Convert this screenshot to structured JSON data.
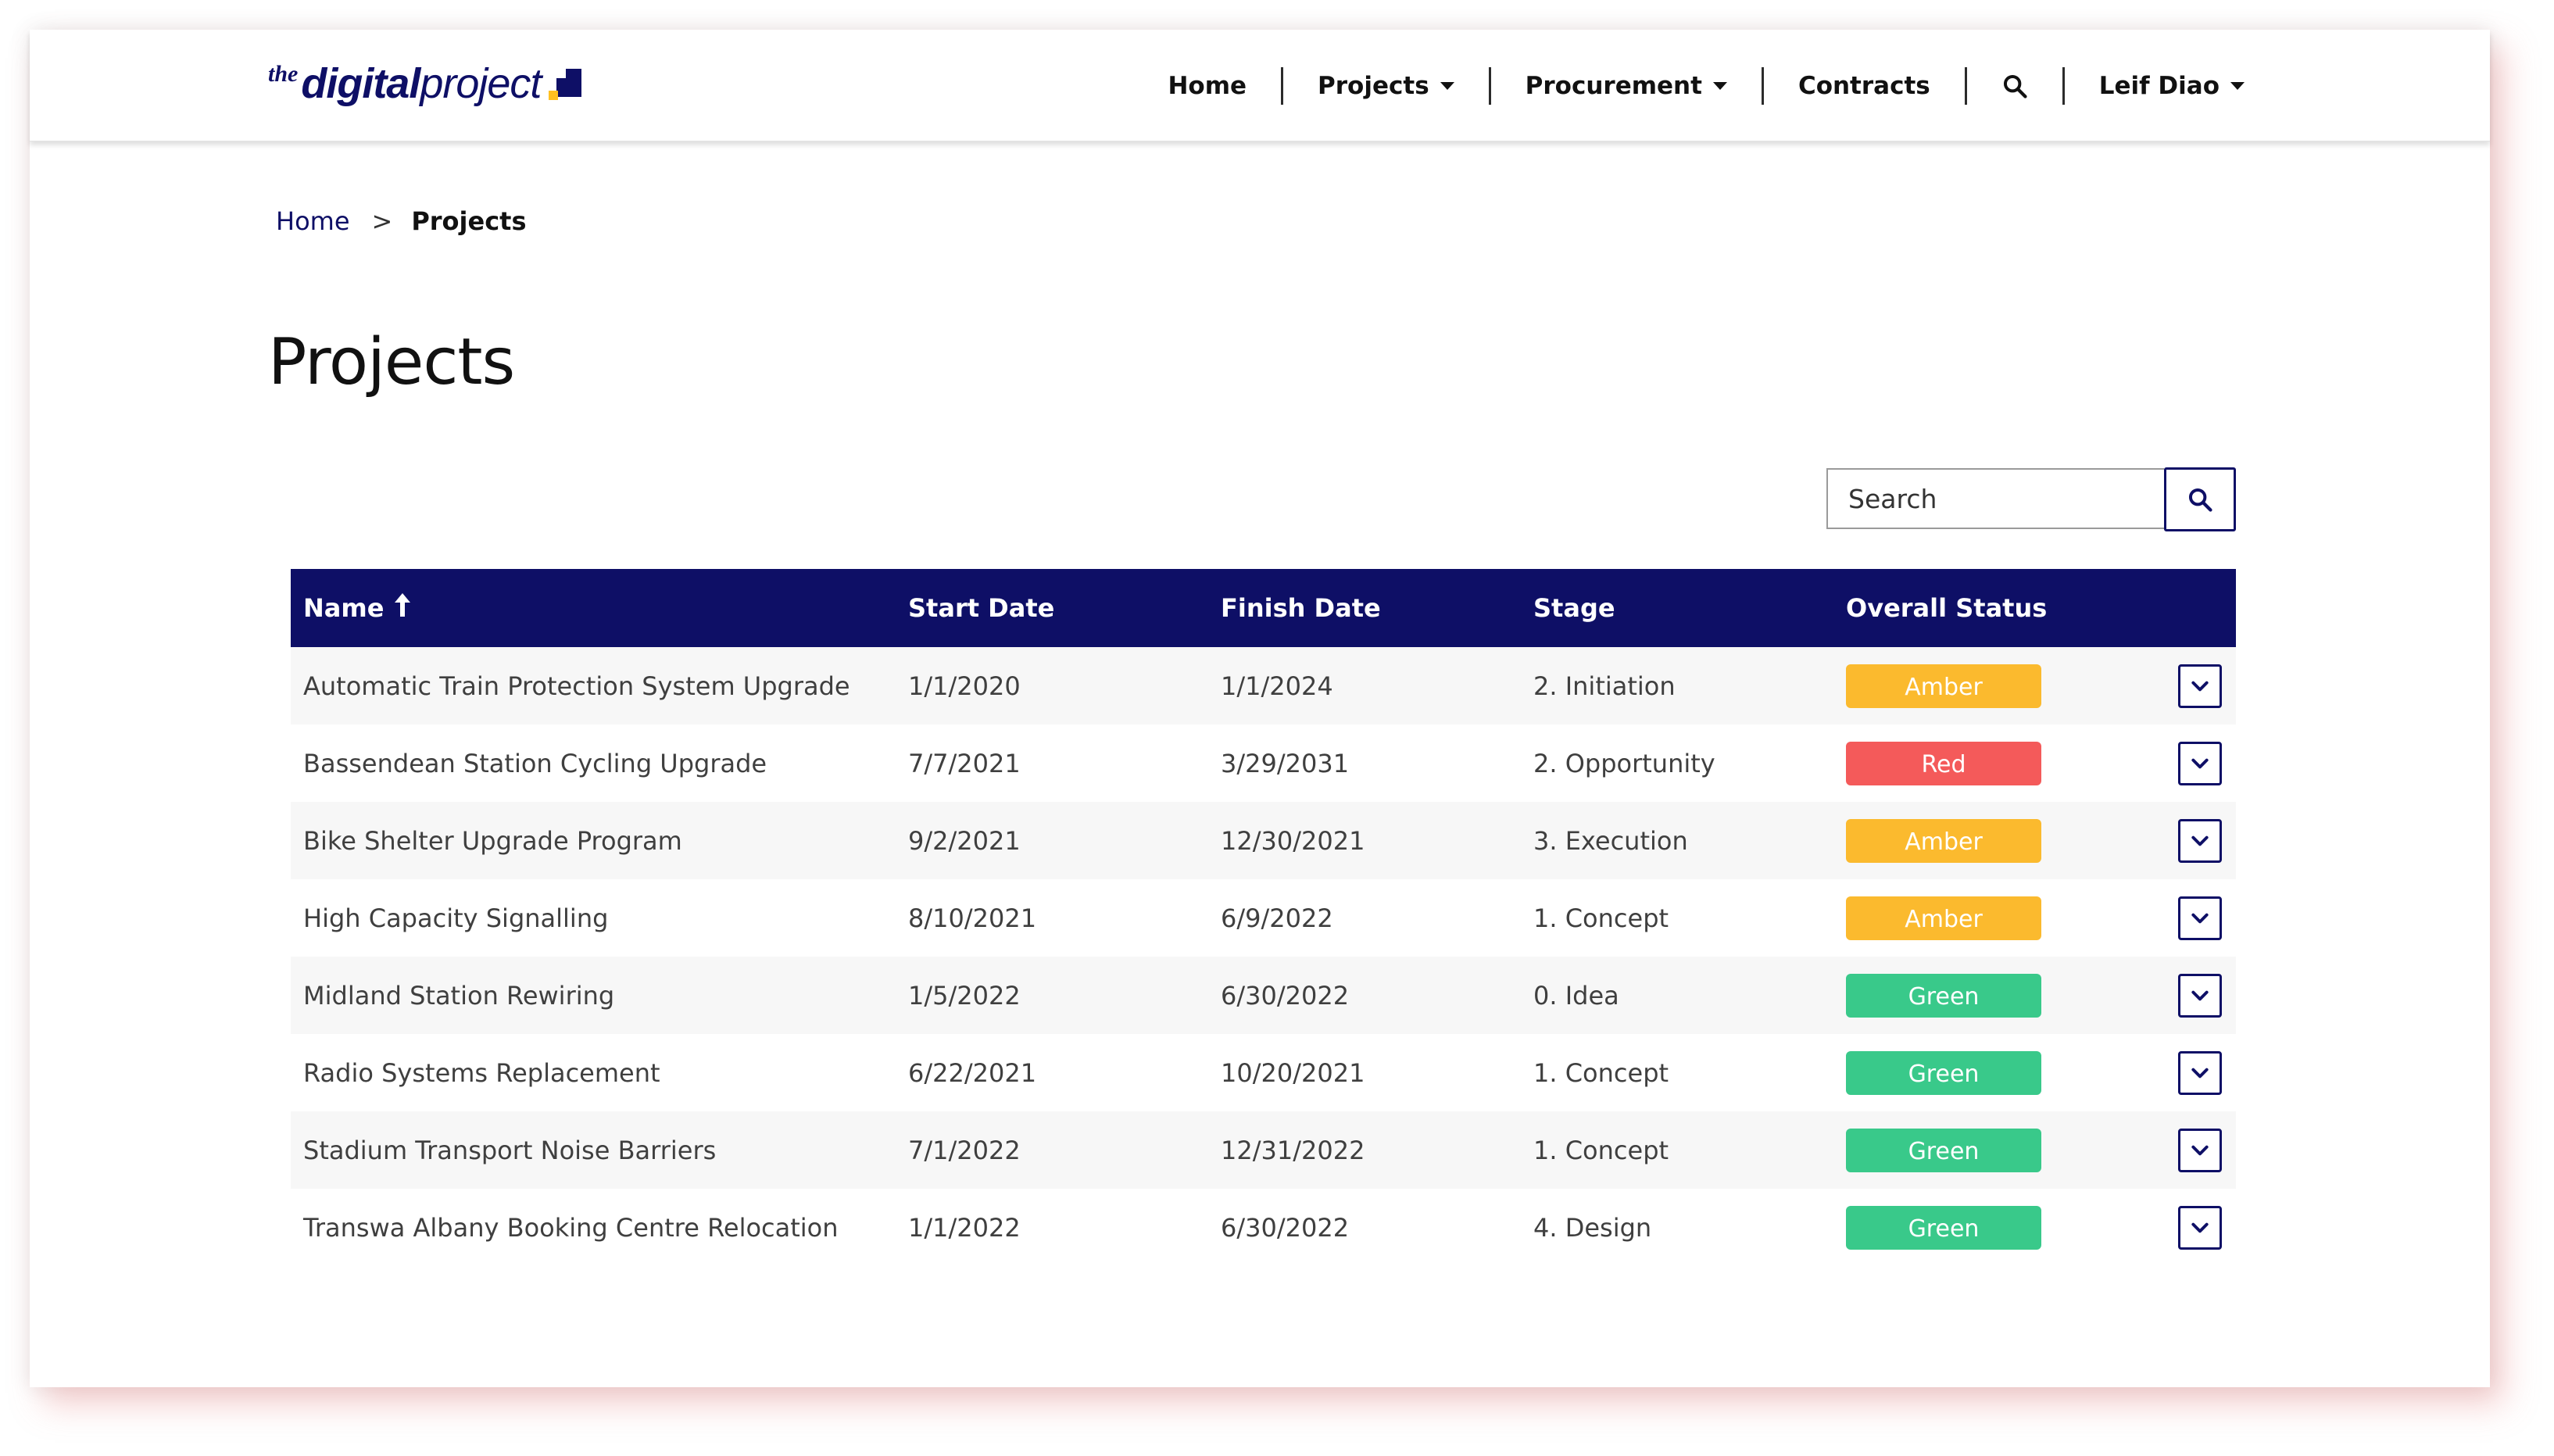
{
  "header": {
    "logo": {
      "prefix": "the",
      "bold": "digital",
      "rest": "project"
    },
    "nav": [
      {
        "label": "Home",
        "dropdown": false
      },
      {
        "label": "Projects",
        "dropdown": true
      },
      {
        "label": "Procurement",
        "dropdown": true
      },
      {
        "label": "Contracts",
        "dropdown": false
      }
    ],
    "search_icon": "search-icon",
    "user": {
      "label": "Leif Diao",
      "dropdown": true
    }
  },
  "breadcrumb": {
    "home": "Home",
    "separator": ">",
    "current": "Projects"
  },
  "page_title": "Projects",
  "search": {
    "placeholder": "Search",
    "value": ""
  },
  "table": {
    "columns": {
      "name": "Name",
      "start": "Start Date",
      "finish": "Finish Date",
      "stage": "Stage",
      "status": "Overall Status"
    },
    "sorted_by": "Name",
    "sort_direction": "ascending",
    "rows": [
      {
        "name": "Automatic Train Protection System Upgrade",
        "start": "1/1/2020",
        "finish": "1/1/2024",
        "stage": "2. Initiation",
        "status": "Amber"
      },
      {
        "name": "Bassendean Station Cycling Upgrade",
        "start": "7/7/2021",
        "finish": "3/29/2031",
        "stage": "2. Opportunity",
        "status": "Red"
      },
      {
        "name": "Bike Shelter Upgrade Program",
        "start": "9/2/2021",
        "finish": "12/30/2021",
        "stage": "3. Execution",
        "status": "Amber"
      },
      {
        "name": "High Capacity Signalling",
        "start": "8/10/2021",
        "finish": "6/9/2022",
        "stage": "1. Concept",
        "status": "Amber"
      },
      {
        "name": "Midland Station Rewiring",
        "start": "1/5/2022",
        "finish": "6/30/2022",
        "stage": "0. Idea",
        "status": "Green"
      },
      {
        "name": "Radio Systems Replacement",
        "start": "6/22/2021",
        "finish": "10/20/2021",
        "stage": "1. Concept",
        "status": "Green"
      },
      {
        "name": "Stadium Transport Noise Barriers",
        "start": "7/1/2022",
        "finish": "12/31/2022",
        "stage": "1. Concept",
        "status": "Green"
      },
      {
        "name": "Transwa Albany Booking Centre Relocation",
        "start": "1/1/2022",
        "finish": "6/30/2022",
        "stage": "4. Design",
        "status": "Green"
      }
    ]
  },
  "colors": {
    "navy": "#0e0f66",
    "amber": "#fbba2e",
    "red": "#f45a5a",
    "green": "#39c98a",
    "logo_accent": "#ffc021"
  }
}
